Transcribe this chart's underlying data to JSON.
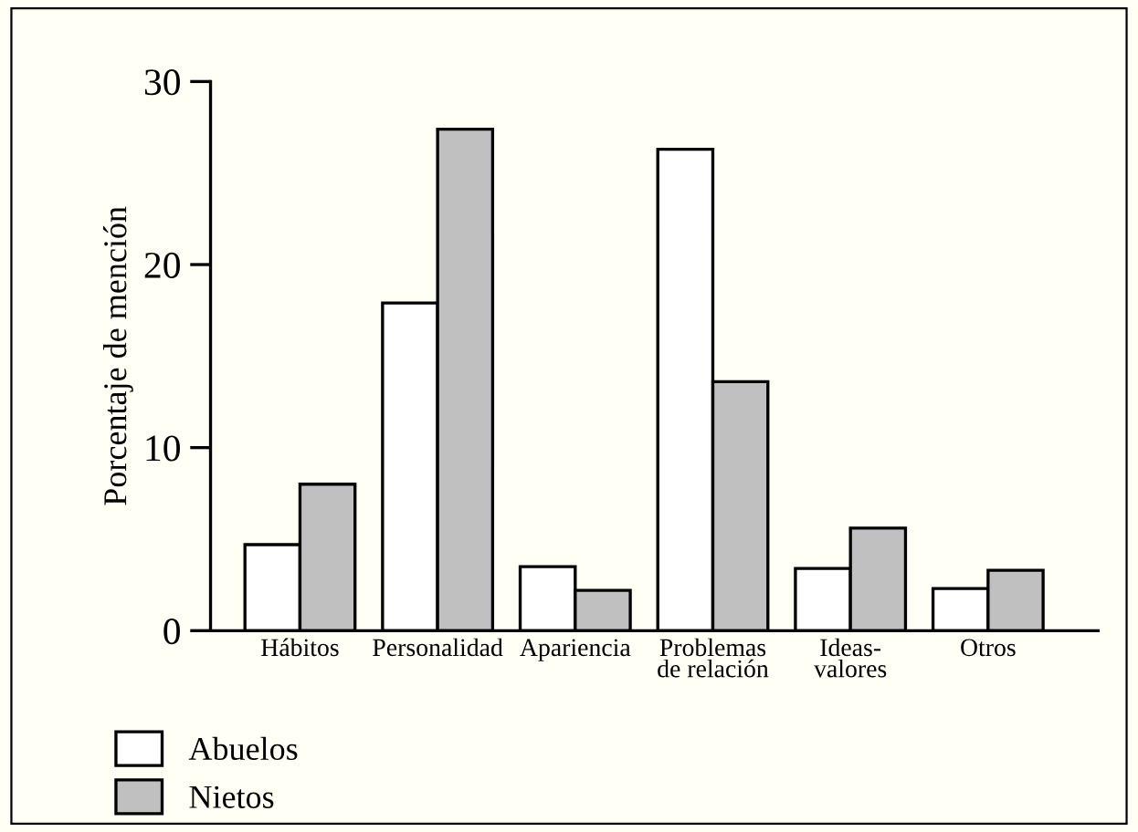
{
  "chart_data": {
    "type": "bar",
    "ylabel": "Porcentaje de mención",
    "categories": [
      "Hábitos",
      "Personalidad",
      "Apariencia",
      "Problemas\nde relación",
      "Ideas-\nvalores",
      "Otros"
    ],
    "series": [
      {
        "name": "Abuelos",
        "color": "#ffffff",
        "values": [
          4.7,
          17.9,
          3.5,
          26.3,
          3.4,
          2.3
        ]
      },
      {
        "name": "Nietos",
        "color": "#c0c0c0",
        "values": [
          8.0,
          27.4,
          2.2,
          13.6,
          5.6,
          3.3
        ]
      }
    ],
    "ylim": [
      0,
      30
    ],
    "yticks": [
      0,
      10,
      20,
      30
    ],
    "grid": false,
    "legend": "bottom left"
  }
}
